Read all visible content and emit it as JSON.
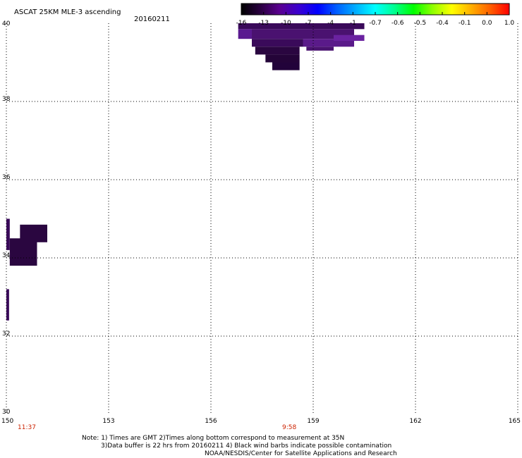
{
  "chart_data": {
    "type": "heatmap",
    "title": "ASCAT 25KM MLE-3 ascending",
    "date": "20160211",
    "xlim": [
      150,
      165
    ],
    "ylim": [
      30,
      40
    ],
    "x_ticks": [
      "150",
      "153",
      "156",
      "159",
      "162",
      "165"
    ],
    "y_ticks": [
      "40",
      "38",
      "36",
      "34",
      "32",
      "30"
    ],
    "grid": true,
    "colorbar": {
      "labels": [
        "-16",
        "-13",
        "-10",
        "-7",
        "-4",
        "-1",
        "-0.7",
        "-0.6",
        "-0.5",
        "-0.4",
        "-0.1",
        "0.0",
        "1.0"
      ],
      "colors": [
        "#000000",
        "#2a0040",
        "#5a0090",
        "#3a00d0",
        "#0000ff",
        "#0060ff",
        "#00b0ff",
        "#00ffff",
        "#00ff90",
        "#00ff00",
        "#90ff00",
        "#ffff00",
        "#ffb000",
        "#ff6000",
        "#ff0000"
      ]
    },
    "times": [
      {
        "lon": 150.6,
        "label": "11:37"
      },
      {
        "lon": 158.3,
        "label": "9:58"
      }
    ],
    "cells": [
      {
        "lon0": 156.8,
        "lon1": 160.5,
        "lat0": 39.85,
        "lat1": 40.0,
        "color": "#3a0a5a"
      },
      {
        "lon0": 156.8,
        "lon1": 157.2,
        "lat0": 39.6,
        "lat1": 39.85,
        "color": "#5a1a90"
      },
      {
        "lon0": 157.2,
        "lon1": 160.2,
        "lat0": 39.6,
        "lat1": 39.85,
        "color": "#4a1270"
      },
      {
        "lon0": 157.2,
        "lon1": 158.7,
        "lat0": 39.4,
        "lat1": 39.6,
        "color": "#3a0a5a"
      },
      {
        "lon0": 158.7,
        "lon1": 160.2,
        "lat0": 39.4,
        "lat1": 39.6,
        "color": "#5a1a8a"
      },
      {
        "lon0": 157.3,
        "lon1": 158.6,
        "lat0": 39.2,
        "lat1": 39.4,
        "color": "#2a0640"
      },
      {
        "lon0": 159.6,
        "lon1": 160.5,
        "lat0": 39.55,
        "lat1": 39.7,
        "color": "#6a22a0"
      },
      {
        "lon0": 158.8,
        "lon1": 159.6,
        "lat0": 39.3,
        "lat1": 39.4,
        "color": "#4a1270"
      },
      {
        "lon0": 157.6,
        "lon1": 158.6,
        "lat0": 39.0,
        "lat1": 39.2,
        "color": "#240438"
      },
      {
        "lon0": 157.8,
        "lon1": 158.6,
        "lat0": 38.8,
        "lat1": 39.0,
        "color": "#22033a"
      },
      {
        "lon0": 150.0,
        "lon1": 150.1,
        "lat0": 34.2,
        "lat1": 35.0,
        "color": "#3a0a5a"
      },
      {
        "lon0": 150.4,
        "lon1": 151.2,
        "lat0": 34.4,
        "lat1": 34.85,
        "color": "#2a0640"
      },
      {
        "lon0": 150.1,
        "lon1": 150.9,
        "lat0": 33.8,
        "lat1": 34.5,
        "color": "#2a0640"
      },
      {
        "lon0": 150.0,
        "lon1": 150.08,
        "lat0": 32.4,
        "lat1": 33.2,
        "color": "#3a0a5a"
      }
    ]
  },
  "notes": {
    "line1": "Note: 1) Times are GMT 2)Times along bottom correspond to measurement at 35N",
    "line2": "3)Data buffer is 22 hrs from 20160211 4) Black wind barbs indicate possible contamination",
    "line3": "NOAA/NESDIS/Center for Satellite Applications and Research"
  }
}
